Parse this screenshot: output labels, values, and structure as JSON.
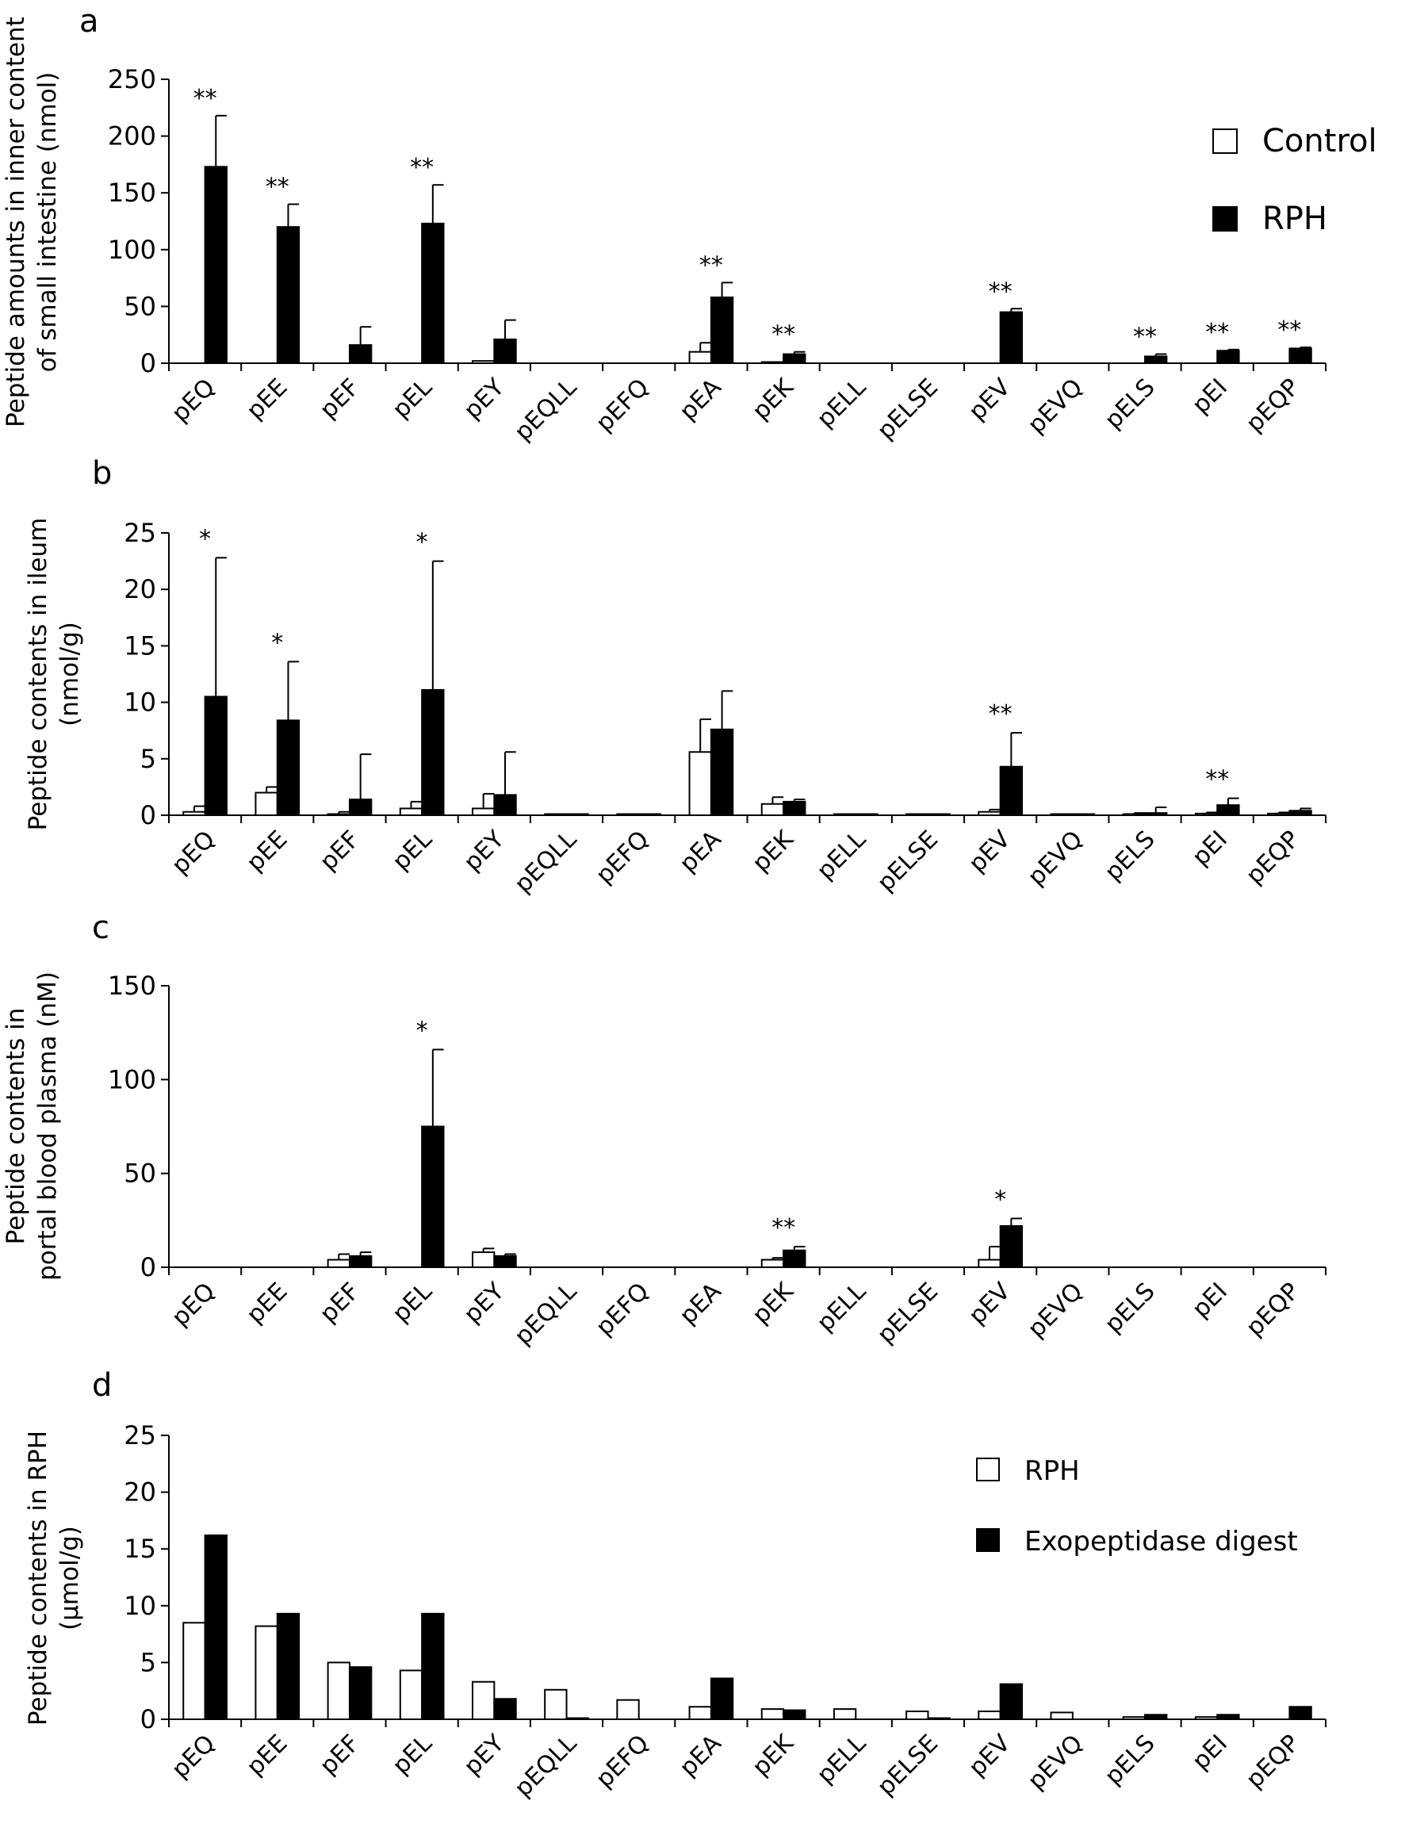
{
  "colors": {
    "control": "#ffffff",
    "treated": "#000000",
    "stroke": "#000000"
  },
  "chart_data": [
    {
      "type": "bar",
      "panel": "a",
      "ylabel": [
        "Peptide amounts in inner content",
        "of small intestine (nmol)"
      ],
      "ylim": [
        0,
        250
      ],
      "yticks": [
        0,
        50,
        100,
        150,
        200,
        250
      ],
      "categories": [
        "pEQ",
        "pEE",
        "pEF",
        "pEL",
        "pEY",
        "pEQLL",
        "pEFQ",
        "pEA",
        "pEK",
        "pELL",
        "pELSE",
        "pEV",
        "pEVQ",
        "pELS",
        "pEI",
        "pEQP"
      ],
      "legend": "right",
      "series": [
        {
          "name": "Control",
          "values": [
            0,
            0,
            0,
            0,
            2,
            0,
            0,
            10,
            1,
            0,
            0,
            0,
            0,
            0,
            0,
            0
          ],
          "errors": [
            0,
            0,
            0,
            0,
            0,
            0,
            0,
            8,
            0,
            0,
            0,
            0,
            0,
            0,
            0,
            0
          ]
        },
        {
          "name": "RPH",
          "values": [
            173,
            120,
            16,
            123,
            21,
            0,
            0,
            58,
            8,
            0,
            0,
            45,
            0,
            6,
            11,
            13
          ],
          "errors": [
            45,
            20,
            16,
            34,
            17,
            0,
            0,
            13,
            2,
            0,
            0,
            3,
            0,
            2,
            1,
            1
          ]
        }
      ],
      "significance": [
        "**",
        "**",
        "",
        "**",
        "",
        "",
        "",
        "**",
        "**",
        "",
        "",
        "**",
        "",
        "**",
        "**",
        "**"
      ]
    },
    {
      "type": "bar",
      "panel": "b",
      "ylabel": [
        "Peptide contents in ileum",
        "(nmol/g)"
      ],
      "ylim": [
        0,
        25
      ],
      "yticks": [
        0,
        5,
        10,
        15,
        20,
        25
      ],
      "categories": [
        "pEQ",
        "pEE",
        "pEF",
        "pEL",
        "pEY",
        "pEQLL",
        "pEFQ",
        "pEA",
        "pEK",
        "pELL",
        "pELSE",
        "pEV",
        "pEVQ",
        "pELS",
        "pEI",
        "pEQP"
      ],
      "series": [
        {
          "name": "Control",
          "values": [
            0.3,
            2.0,
            0.1,
            0.6,
            0.6,
            0.05,
            0.05,
            5.6,
            1.0,
            0.05,
            0.05,
            0.3,
            0.05,
            0.1,
            0.15,
            0.15
          ],
          "errors": [
            0.5,
            0.5,
            0.2,
            0.6,
            1.3,
            0,
            0,
            2.9,
            0.6,
            0,
            0,
            0.2,
            0,
            0.1,
            0.1,
            0.1
          ]
        },
        {
          "name": "RPH",
          "values": [
            10.5,
            8.4,
            1.4,
            11.1,
            1.8,
            0.05,
            0.05,
            7.6,
            1.2,
            0.05,
            0.05,
            4.3,
            0.05,
            0.2,
            0.9,
            0.4
          ],
          "errors": [
            12.3,
            5.2,
            4.0,
            11.4,
            3.8,
            0,
            0,
            3.4,
            0.2,
            0,
            0,
            3.0,
            0,
            0.5,
            0.6,
            0.2
          ]
        }
      ],
      "significance": [
        "*",
        "*",
        "",
        "*",
        "",
        "",
        "",
        "",
        "",
        "",
        "",
        "**",
        "",
        "",
        "**",
        ""
      ]
    },
    {
      "type": "bar",
      "panel": "c",
      "ylabel": [
        "Peptide contents in",
        "portal blood plasma (nM)"
      ],
      "ylim": [
        0,
        150
      ],
      "yticks": [
        0,
        50,
        100,
        150
      ],
      "categories": [
        "pEQ",
        "pEE",
        "pEF",
        "pEL",
        "pEY",
        "pEQLL",
        "pEFQ",
        "pEA",
        "pEK",
        "pELL",
        "pELSE",
        "pEV",
        "pEVQ",
        "pELS",
        "pEI",
        "pEQP"
      ],
      "series": [
        {
          "name": "Control",
          "values": [
            0,
            0,
            4,
            0,
            8,
            0,
            0,
            0,
            4,
            0,
            0,
            4,
            0,
            0,
            0,
            0
          ],
          "errors": [
            0,
            0,
            3,
            0,
            2,
            0,
            0,
            0,
            1,
            0,
            0,
            7,
            0,
            0,
            0,
            0
          ]
        },
        {
          "name": "RPH",
          "values": [
            0,
            0,
            6,
            75,
            6,
            0,
            0,
            0,
            9,
            0,
            0,
            22,
            0,
            0,
            0,
            0
          ],
          "errors": [
            0,
            0,
            2,
            41,
            1,
            0,
            0,
            0,
            2,
            0,
            0,
            4,
            0,
            0,
            0,
            0
          ]
        }
      ],
      "significance": [
        "",
        "",
        "",
        "*",
        "",
        "",
        "",
        "",
        "**",
        "",
        "",
        "*",
        "",
        "",
        "",
        ""
      ]
    },
    {
      "type": "bar",
      "panel": "d",
      "ylabel": [
        "Peptide contents in RPH",
        "(μmol/g)"
      ],
      "ylim": [
        0,
        25
      ],
      "yticks": [
        0,
        5,
        10,
        15,
        20,
        25
      ],
      "categories": [
        "pEQ",
        "pEE",
        "pEF",
        "pEL",
        "pEY",
        "pEQLL",
        "pEFQ",
        "pEA",
        "pEK",
        "pELL",
        "pELSE",
        "pEV",
        "pEVQ",
        "pELS",
        "pEI",
        "pEQP"
      ],
      "legend": "right",
      "series": [
        {
          "name": "RPH",
          "values": [
            8.5,
            8.2,
            5.0,
            4.3,
            3.3,
            2.6,
            1.7,
            1.1,
            0.9,
            0.9,
            0.7,
            0.7,
            0.6,
            0.2,
            0.2,
            0.0
          ],
          "errors": []
        },
        {
          "name": "Exopeptidase digest",
          "values": [
            16.2,
            9.3,
            4.6,
            9.3,
            1.8,
            0.1,
            0.0,
            3.6,
            0.8,
            0.0,
            0.1,
            3.1,
            0.0,
            0.4,
            0.4,
            1.1
          ],
          "errors": []
        }
      ],
      "significance": []
    }
  ]
}
